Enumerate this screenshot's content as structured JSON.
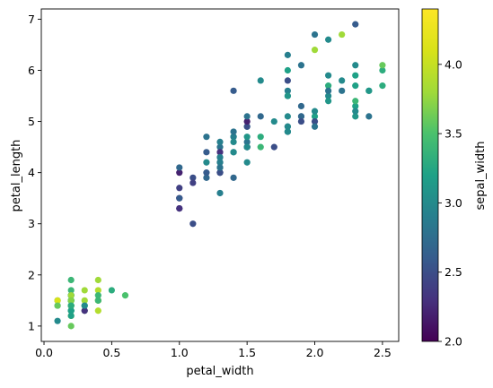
{
  "chart_data": {
    "type": "scatter",
    "title": "",
    "xlabel": "petal_width",
    "ylabel": "petal_length",
    "colorbar_label": "sepal_width",
    "xlim": [
      -0.02,
      2.62
    ],
    "ylim": [
      0.7,
      7.2
    ],
    "xticks": [
      0.0,
      0.5,
      1.0,
      1.5,
      2.0,
      2.5
    ],
    "xtick_labels": [
      "0.0",
      "0.5",
      "1.0",
      "1.5",
      "2.0",
      "2.5"
    ],
    "yticks": [
      1,
      2,
      3,
      4,
      5,
      6,
      7
    ],
    "ytick_labels": [
      "1",
      "2",
      "3",
      "4",
      "5",
      "6",
      "7"
    ],
    "colorbar_range": [
      2.0,
      4.4
    ],
    "colorbar_ticks": [
      2.0,
      2.5,
      3.0,
      3.5,
      4.0
    ],
    "colorbar_tick_labels": [
      "2.0",
      "2.5",
      "3.0",
      "3.5",
      "4.0"
    ],
    "colormap": "viridis",
    "grid": false,
    "points": [
      {
        "x": 0.2,
        "y": 1.4,
        "c": 3.5
      },
      {
        "x": 0.2,
        "y": 1.4,
        "c": 3.0
      },
      {
        "x": 0.2,
        "y": 1.3,
        "c": 3.2
      },
      {
        "x": 0.2,
        "y": 1.5,
        "c": 3.1
      },
      {
        "x": 0.2,
        "y": 1.4,
        "c": 3.6
      },
      {
        "x": 0.4,
        "y": 1.7,
        "c": 3.9
      },
      {
        "x": 0.3,
        "y": 1.4,
        "c": 3.4
      },
      {
        "x": 0.2,
        "y": 1.5,
        "c": 3.4
      },
      {
        "x": 0.2,
        "y": 1.4,
        "c": 2.9
      },
      {
        "x": 0.1,
        "y": 1.5,
        "c": 3.1
      },
      {
        "x": 0.2,
        "y": 1.5,
        "c": 3.7
      },
      {
        "x": 0.2,
        "y": 1.6,
        "c": 3.4
      },
      {
        "x": 0.1,
        "y": 1.4,
        "c": 3.0
      },
      {
        "x": 0.1,
        "y": 1.1,
        "c": 3.0
      },
      {
        "x": 0.2,
        "y": 1.2,
        "c": 4.0
      },
      {
        "x": 0.4,
        "y": 1.5,
        "c": 4.4
      },
      {
        "x": 0.4,
        "y": 1.3,
        "c": 3.9
      },
      {
        "x": 0.3,
        "y": 1.4,
        "c": 3.5
      },
      {
        "x": 0.3,
        "y": 1.7,
        "c": 3.8
      },
      {
        "x": 0.3,
        "y": 1.5,
        "c": 3.8
      },
      {
        "x": 0.2,
        "y": 1.7,
        "c": 3.4
      },
      {
        "x": 0.4,
        "y": 1.5,
        "c": 3.7
      },
      {
        "x": 0.2,
        "y": 1.0,
        "c": 3.6
      },
      {
        "x": 0.5,
        "y": 1.7,
        "c": 3.3
      },
      {
        "x": 0.2,
        "y": 1.9,
        "c": 3.4
      },
      {
        "x": 0.2,
        "y": 1.6,
        "c": 3.0
      },
      {
        "x": 0.4,
        "y": 1.6,
        "c": 3.4
      },
      {
        "x": 0.2,
        "y": 1.5,
        "c": 3.5
      },
      {
        "x": 0.2,
        "y": 1.4,
        "c": 3.4
      },
      {
        "x": 0.2,
        "y": 1.6,
        "c": 3.2
      },
      {
        "x": 0.2,
        "y": 1.6,
        "c": 3.1
      },
      {
        "x": 0.4,
        "y": 1.5,
        "c": 3.4
      },
      {
        "x": 0.1,
        "y": 1.5,
        "c": 4.1
      },
      {
        "x": 0.2,
        "y": 1.4,
        "c": 4.2
      },
      {
        "x": 0.2,
        "y": 1.5,
        "c": 3.1
      },
      {
        "x": 0.2,
        "y": 1.2,
        "c": 3.2
      },
      {
        "x": 0.2,
        "y": 1.3,
        "c": 3.5
      },
      {
        "x": 0.1,
        "y": 1.4,
        "c": 3.6
      },
      {
        "x": 0.2,
        "y": 1.3,
        "c": 3.0
      },
      {
        "x": 0.2,
        "y": 1.5,
        "c": 3.4
      },
      {
        "x": 0.3,
        "y": 1.3,
        "c": 3.5
      },
      {
        "x": 0.3,
        "y": 1.3,
        "c": 2.3
      },
      {
        "x": 0.2,
        "y": 1.3,
        "c": 3.2
      },
      {
        "x": 0.6,
        "y": 1.6,
        "c": 3.5
      },
      {
        "x": 0.4,
        "y": 1.9,
        "c": 3.8
      },
      {
        "x": 0.3,
        "y": 1.4,
        "c": 3.0
      },
      {
        "x": 0.2,
        "y": 1.6,
        "c": 3.8
      },
      {
        "x": 0.2,
        "y": 1.4,
        "c": 3.2
      },
      {
        "x": 0.2,
        "y": 1.5,
        "c": 3.7
      },
      {
        "x": 0.2,
        "y": 1.4,
        "c": 3.3
      },
      {
        "x": 1.4,
        "y": 4.7,
        "c": 3.2
      },
      {
        "x": 1.5,
        "y": 4.5,
        "c": 3.2
      },
      {
        "x": 1.5,
        "y": 4.9,
        "c": 3.1
      },
      {
        "x": 1.3,
        "y": 4.0,
        "c": 2.3
      },
      {
        "x": 1.5,
        "y": 4.6,
        "c": 2.8
      },
      {
        "x": 1.3,
        "y": 4.5,
        "c": 2.8
      },
      {
        "x": 1.6,
        "y": 4.7,
        "c": 3.3
      },
      {
        "x": 1.0,
        "y": 3.3,
        "c": 2.4
      },
      {
        "x": 1.3,
        "y": 4.6,
        "c": 2.9
      },
      {
        "x": 1.4,
        "y": 3.9,
        "c": 2.7
      },
      {
        "x": 1.0,
        "y": 3.5,
        "c": 2.0
      },
      {
        "x": 1.5,
        "y": 4.2,
        "c": 3.0
      },
      {
        "x": 1.0,
        "y": 4.0,
        "c": 2.2
      },
      {
        "x": 1.4,
        "y": 4.7,
        "c": 2.9
      },
      {
        "x": 1.3,
        "y": 3.6,
        "c": 2.9
      },
      {
        "x": 1.4,
        "y": 4.4,
        "c": 3.1
      },
      {
        "x": 1.5,
        "y": 4.5,
        "c": 3.0
      },
      {
        "x": 1.0,
        "y": 4.1,
        "c": 2.7
      },
      {
        "x": 1.5,
        "y": 4.5,
        "c": 2.2
      },
      {
        "x": 1.1,
        "y": 3.9,
        "c": 2.5
      },
      {
        "x": 1.8,
        "y": 4.8,
        "c": 3.2
      },
      {
        "x": 1.3,
        "y": 4.0,
        "c": 2.8
      },
      {
        "x": 1.5,
        "y": 4.9,
        "c": 2.5
      },
      {
        "x": 1.2,
        "y": 4.7,
        "c": 2.8
      },
      {
        "x": 1.3,
        "y": 4.3,
        "c": 2.9
      },
      {
        "x": 1.4,
        "y": 4.4,
        "c": 3.0
      },
      {
        "x": 1.4,
        "y": 4.8,
        "c": 2.8
      },
      {
        "x": 1.7,
        "y": 5.0,
        "c": 3.0
      },
      {
        "x": 1.5,
        "y": 4.5,
        "c": 2.9
      },
      {
        "x": 1.0,
        "y": 3.5,
        "c": 2.6
      },
      {
        "x": 1.1,
        "y": 3.8,
        "c": 2.4
      },
      {
        "x": 1.0,
        "y": 3.7,
        "c": 2.4
      },
      {
        "x": 1.2,
        "y": 3.9,
        "c": 2.7
      },
      {
        "x": 1.6,
        "y": 5.1,
        "c": 2.7
      },
      {
        "x": 1.5,
        "y": 4.5,
        "c": 3.0
      },
      {
        "x": 1.6,
        "y": 4.5,
        "c": 3.4
      },
      {
        "x": 1.5,
        "y": 4.7,
        "c": 3.1
      },
      {
        "x": 1.3,
        "y": 4.4,
        "c": 2.3
      },
      {
        "x": 1.3,
        "y": 4.1,
        "c": 3.0
      },
      {
        "x": 1.3,
        "y": 4.0,
        "c": 2.5
      },
      {
        "x": 1.2,
        "y": 4.4,
        "c": 2.6
      },
      {
        "x": 1.4,
        "y": 4.6,
        "c": 3.0
      },
      {
        "x": 1.2,
        "y": 4.0,
        "c": 2.6
      },
      {
        "x": 1.0,
        "y": 3.3,
        "c": 2.3
      },
      {
        "x": 1.3,
        "y": 4.2,
        "c": 2.7
      },
      {
        "x": 1.2,
        "y": 4.2,
        "c": 3.0
      },
      {
        "x": 1.3,
        "y": 4.2,
        "c": 2.9
      },
      {
        "x": 1.3,
        "y": 4.3,
        "c": 2.9
      },
      {
        "x": 1.1,
        "y": 3.0,
        "c": 2.5
      },
      {
        "x": 1.3,
        "y": 4.1,
        "c": 2.8
      },
      {
        "x": 2.5,
        "y": 6.0,
        "c": 3.3
      },
      {
        "x": 1.9,
        "y": 5.1,
        "c": 2.7
      },
      {
        "x": 2.1,
        "y": 5.9,
        "c": 3.0
      },
      {
        "x": 1.8,
        "y": 5.6,
        "c": 2.9
      },
      {
        "x": 2.2,
        "y": 5.8,
        "c": 3.0
      },
      {
        "x": 2.1,
        "y": 6.6,
        "c": 3.0
      },
      {
        "x": 1.7,
        "y": 4.5,
        "c": 2.5
      },
      {
        "x": 1.8,
        "y": 6.3,
        "c": 2.9
      },
      {
        "x": 1.8,
        "y": 5.8,
        "c": 2.5
      },
      {
        "x": 2.5,
        "y": 6.1,
        "c": 3.6
      },
      {
        "x": 2.0,
        "y": 5.1,
        "c": 3.2
      },
      {
        "x": 1.9,
        "y": 5.3,
        "c": 2.7
      },
      {
        "x": 2.1,
        "y": 5.5,
        "c": 3.0
      },
      {
        "x": 2.0,
        "y": 5.0,
        "c": 2.5
      },
      {
        "x": 2.4,
        "y": 5.1,
        "c": 2.8
      },
      {
        "x": 2.3,
        "y": 5.3,
        "c": 3.2
      },
      {
        "x": 1.8,
        "y": 5.5,
        "c": 3.0
      },
      {
        "x": 2.2,
        "y": 6.7,
        "c": 3.8
      },
      {
        "x": 2.3,
        "y": 6.9,
        "c": 2.6
      },
      {
        "x": 1.5,
        "y": 5.0,
        "c": 2.2
      },
      {
        "x": 2.3,
        "y": 5.7,
        "c": 3.2
      },
      {
        "x": 2.0,
        "y": 4.9,
        "c": 2.8
      },
      {
        "x": 2.0,
        "y": 6.7,
        "c": 2.8
      },
      {
        "x": 1.8,
        "y": 4.9,
        "c": 2.7
      },
      {
        "x": 2.1,
        "y": 5.7,
        "c": 3.3
      },
      {
        "x": 1.8,
        "y": 6.0,
        "c": 3.2
      },
      {
        "x": 1.8,
        "y": 4.8,
        "c": 2.8
      },
      {
        "x": 1.8,
        "y": 4.9,
        "c": 3.0
      },
      {
        "x": 2.1,
        "y": 5.6,
        "c": 2.8
      },
      {
        "x": 1.6,
        "y": 5.8,
        "c": 3.0
      },
      {
        "x": 1.9,
        "y": 6.1,
        "c": 2.8
      },
      {
        "x": 2.0,
        "y": 6.4,
        "c": 3.8
      },
      {
        "x": 2.2,
        "y": 5.6,
        "c": 2.8
      },
      {
        "x": 1.5,
        "y": 5.1,
        "c": 2.8
      },
      {
        "x": 1.4,
        "y": 5.6,
        "c": 2.6
      },
      {
        "x": 2.3,
        "y": 6.1,
        "c": 3.0
      },
      {
        "x": 2.4,
        "y": 5.6,
        "c": 3.4
      },
      {
        "x": 1.8,
        "y": 5.5,
        "c": 3.1
      },
      {
        "x": 1.8,
        "y": 4.8,
        "c": 3.0
      },
      {
        "x": 2.1,
        "y": 5.4,
        "c": 3.1
      },
      {
        "x": 2.4,
        "y": 5.6,
        "c": 3.1
      },
      {
        "x": 2.3,
        "y": 5.1,
        "c": 3.1
      },
      {
        "x": 1.9,
        "y": 5.1,
        "c": 2.7
      },
      {
        "x": 2.3,
        "y": 5.9,
        "c": 3.2
      },
      {
        "x": 2.5,
        "y": 5.7,
        "c": 3.3
      },
      {
        "x": 2.3,
        "y": 5.2,
        "c": 3.0
      },
      {
        "x": 1.9,
        "y": 5.0,
        "c": 2.5
      },
      {
        "x": 2.0,
        "y": 5.2,
        "c": 3.0
      },
      {
        "x": 2.3,
        "y": 5.4,
        "c": 3.4
      },
      {
        "x": 1.8,
        "y": 5.1,
        "c": 3.0
      }
    ]
  }
}
